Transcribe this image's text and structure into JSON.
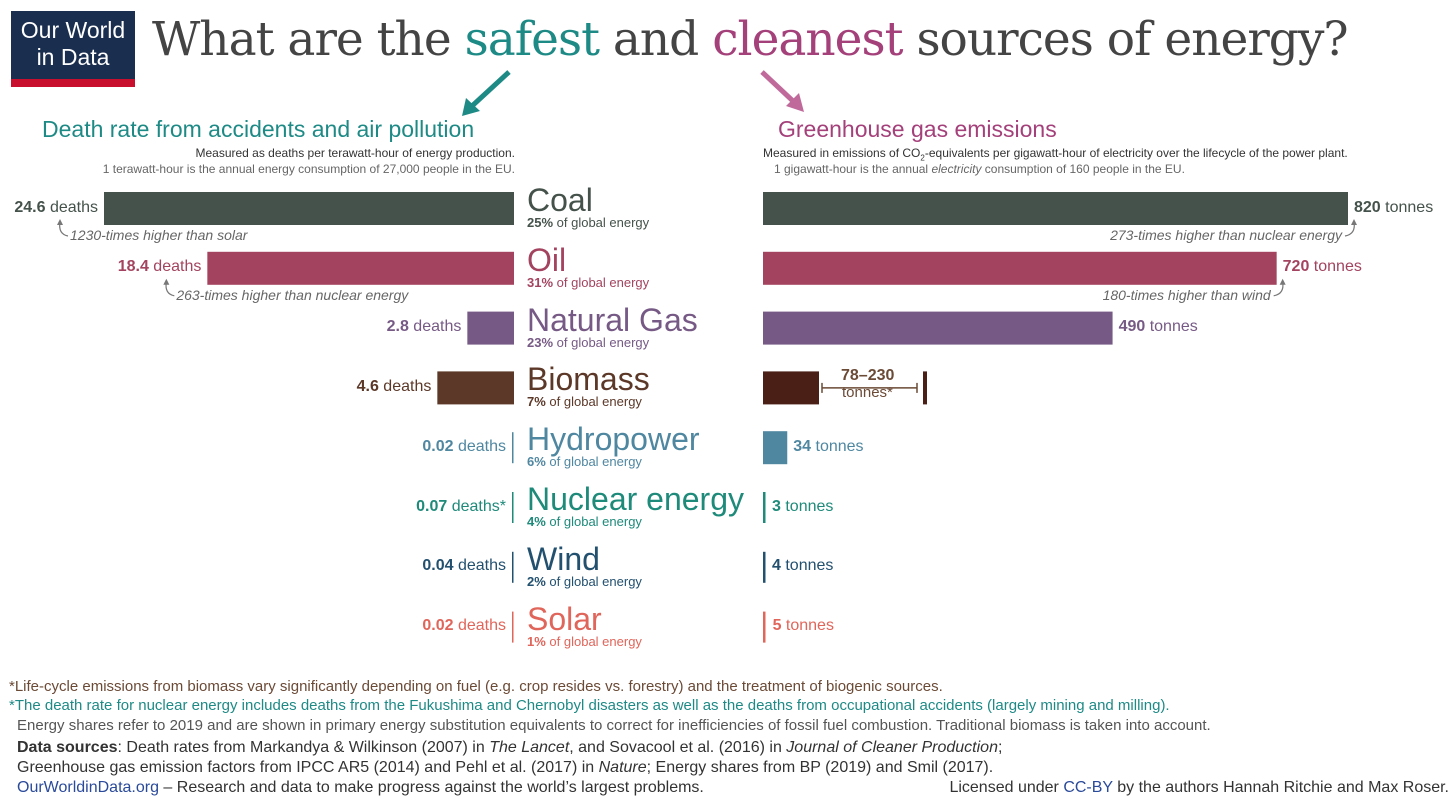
{
  "logo": {
    "line1": "Our World",
    "line2": "in Data"
  },
  "title": {
    "before": "What are the ",
    "safest": "safest",
    "and": " and ",
    "cleanest": "cleanest",
    "after": " sources of energy?"
  },
  "left": {
    "heading": "Death rate from accidents and air pollution",
    "sub1": "Measured as deaths per terawatt-hour of energy production.",
    "sub2": "1 terawatt-hour is the annual energy consumption of 27,000 people in the EU."
  },
  "right": {
    "heading": "Greenhouse gas emissions",
    "sub1a": "Measured in emissions of CO",
    "sub1b": "-equivalents per gigawatt-hour of electricity over the lifecycle of the power plant.",
    "sub2a": "1 gigawatt-hour is the annual ",
    "sub2b": "electricity",
    "sub2c": " consumption of 160 people in the EU."
  },
  "colors": {
    "safe": "#1e8a86",
    "clean": "#a4407a"
  },
  "chart_data": {
    "type": "bar",
    "title": "What are the safest and cleanest sources of energy?",
    "categories": [
      "Coal",
      "Oil",
      "Natural Gas",
      "Biomass",
      "Hydropower",
      "Nuclear energy",
      "Wind",
      "Solar"
    ],
    "series": [
      {
        "name": "Death rate from accidents and air pollution (deaths per TWh)",
        "values": [
          24.6,
          18.4,
          2.8,
          4.6,
          0.02,
          0.07,
          0.04,
          0.02
        ]
      },
      {
        "name": "Greenhouse gas emissions (tonnes CO2-eq per GWh)",
        "values": [
          820,
          720,
          490,
          154,
          34,
          3,
          4,
          5
        ]
      }
    ],
    "sources": [
      {
        "name": "Coal",
        "share_num": "25%",
        "share_txt": " of global energy",
        "deaths": 24.6,
        "deaths_num": "24.6",
        "deaths_txt": " deaths",
        "emissions": 820,
        "em_num": "820",
        "em_txt": " tonnes",
        "color": "#45524b",
        "note_left": "1230-times higher than solar",
        "note_right": "273-times higher than nuclear energy"
      },
      {
        "name": "Oil",
        "share_num": "31%",
        "share_txt": " of global energy",
        "deaths": 18.4,
        "deaths_num": "18.4",
        "deaths_txt": " deaths",
        "emissions": 720,
        "em_num": "720",
        "em_txt": " tonnes",
        "color": "#a3435f",
        "note_left": "263-times higher than nuclear energy",
        "note_right": "180-times higher than wind"
      },
      {
        "name": "Natural Gas",
        "share_num": "23%",
        "share_txt": " of global energy",
        "deaths": 2.8,
        "deaths_num": "2.8",
        "deaths_txt": " deaths",
        "emissions": 490,
        "em_num": "490",
        "em_txt": " tonnes",
        "color": "#765a85"
      },
      {
        "name": "Biomass",
        "share_num": "7%",
        "share_txt": " of global energy",
        "deaths": 4.6,
        "deaths_num": "4.6",
        "deaths_txt": " deaths",
        "emissions_range": [
          78,
          230
        ],
        "em_range_txt": "78–230",
        "em_range_unit": "tonnes*",
        "color": "#5c3828",
        "em_color": "#4a2016"
      },
      {
        "name": "Hydropower",
        "share_num": "6%",
        "share_txt": " of global energy",
        "deaths": 0.02,
        "deaths_num": "0.02",
        "deaths_txt": " deaths",
        "emissions": 34,
        "em_num": "34",
        "em_txt": " tonnes",
        "color": "#4f87a1"
      },
      {
        "name": "Nuclear energy",
        "share_num": "4%",
        "share_txt": " of global energy",
        "deaths": 0.07,
        "deaths_num": "0.07",
        "deaths_txt": " deaths*",
        "emissions": 3,
        "em_num": "3",
        "em_txt": " tonnes",
        "color": "#1e8a7a"
      },
      {
        "name": "Wind",
        "share_num": "2%",
        "share_txt": " of global energy",
        "deaths": 0.04,
        "deaths_num": "0.04",
        "deaths_txt": " deaths",
        "emissions": 4,
        "em_num": "4",
        "em_txt": " tonnes",
        "color": "#22506f"
      },
      {
        "name": "Solar",
        "share_num": "1%",
        "share_txt": " of global energy",
        "deaths": 0.02,
        "deaths_num": "0.02",
        "deaths_txt": " deaths",
        "emissions": 5,
        "em_num": "5",
        "em_txt": " tonnes",
        "color": "#e0655a"
      }
    ]
  },
  "footnotes": {
    "biomass": "*Life-cycle emissions from biomass vary significantly depending on fuel (e.g. crop resides vs. forestry) and the treatment of biogenic sources.",
    "nuclear": "*The death rate for nuclear energy includes deaths from the Fukushima and Chernobyl disasters as well as the deaths from occupational accidents (largely mining and milling).",
    "shares": "Energy shares refer to 2019 and are shown in primary energy substitution equivalents to correct for inefficiencies of fossil fuel combustion. Traditional biomass is taken into account.",
    "ds_label": "Data sources",
    "ds1a": ": Death rates from Markandya & Wilkinson (2007) in ",
    "ds1b": "The Lancet",
    "ds1c": ", and Sovacool et al. (2016) in ",
    "ds1d": "Journal of Cleaner Production",
    "ds1e": ";",
    "ds2a": "Greenhouse gas emission factors from IPCC AR5 (2014) and Pehl et al. (2017) in ",
    "ds2b": "Nature",
    "ds2c": "; Energy shares from BP (2019) and Smil (2017).",
    "site": "OurWorldinData.org",
    "tagline": " – Research and data to make progress against the world’s largest problems.",
    "lic1": "Licensed under ",
    "lic2": "CC-BY",
    "lic3": " by the authors Hannah Ritchie and Max Roser."
  }
}
